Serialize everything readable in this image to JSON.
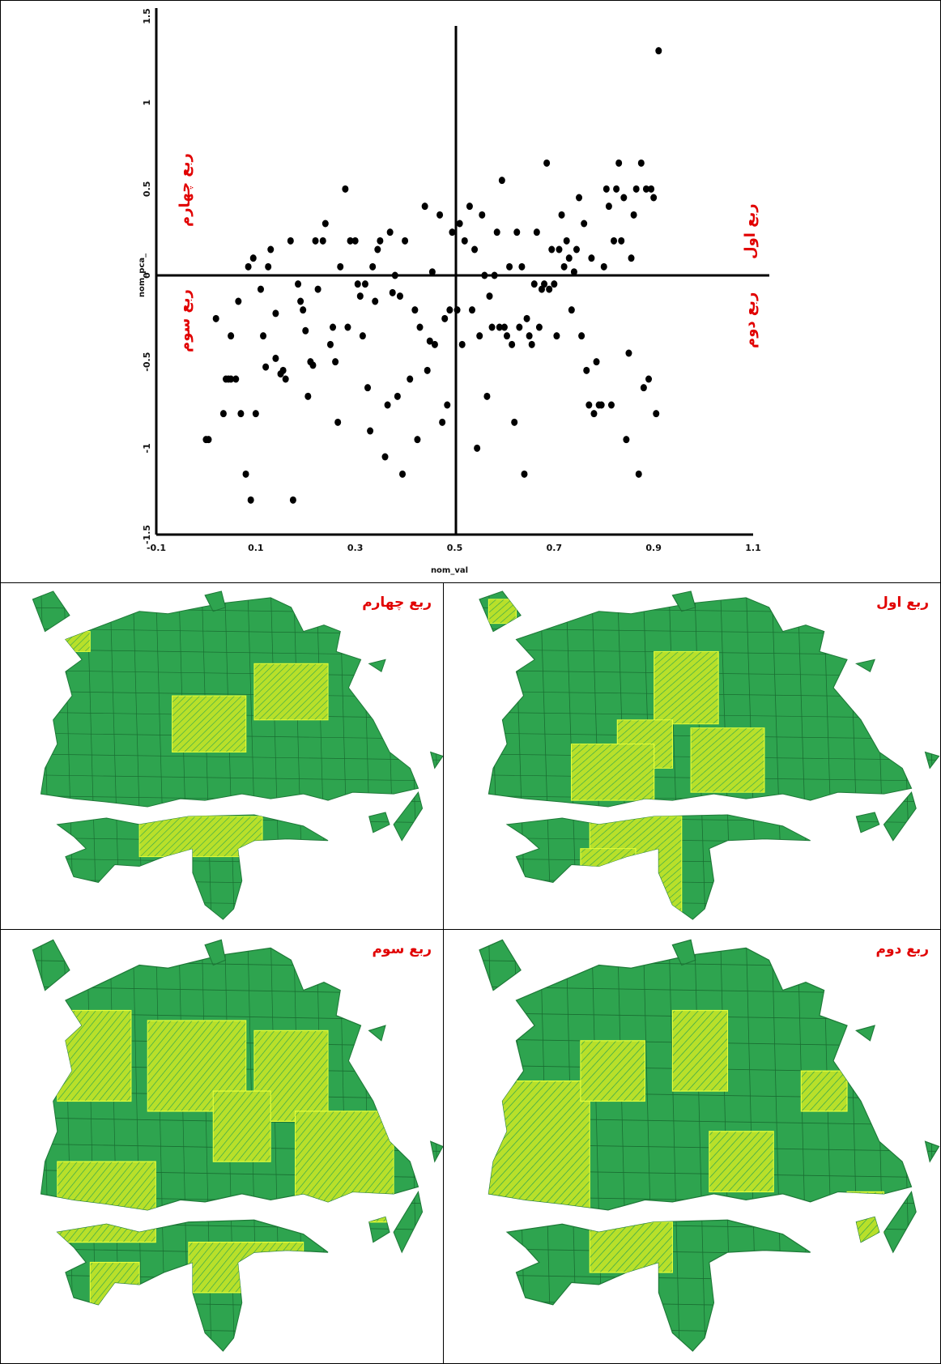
{
  "chart_data": {
    "type": "scatter",
    "title": "",
    "xlabel": "nom_val",
    "ylabel": "nom_pca_",
    "xlim": [
      -0.1,
      1.1
    ],
    "ylim": [
      -1.5,
      1.5
    ],
    "xticks": [
      "-0.1",
      "0.1",
      "0.3",
      "0.5",
      "0.7",
      "0.9",
      "1.1"
    ],
    "yticks": [
      1.5,
      1.0,
      0.5,
      0.0,
      -0.5,
      -1.0,
      -1.5
    ],
    "quadrant_divider": {
      "x": 0.5,
      "y": 0.0
    },
    "quadrants": {
      "q1": "ربع اول",
      "q2": "ربع دوم",
      "q3": "ربع سوم",
      "q4": "ربع چهارم"
    },
    "points": [
      [
        0.0,
        -0.95
      ],
      [
        0.005,
        -0.95
      ],
      [
        0.02,
        -0.25
      ],
      [
        0.035,
        -0.8
      ],
      [
        0.04,
        -0.6
      ],
      [
        0.045,
        -0.6
      ],
      [
        0.05,
        -0.6
      ],
      [
        0.05,
        -0.35
      ],
      [
        0.06,
        -0.6
      ],
      [
        0.065,
        -0.15
      ],
      [
        0.07,
        -0.8
      ],
      [
        0.08,
        -1.15
      ],
      [
        0.09,
        -1.3
      ],
      [
        0.085,
        0.05
      ],
      [
        0.095,
        0.1
      ],
      [
        0.1,
        -0.8
      ],
      [
        0.11,
        -0.08
      ],
      [
        0.115,
        -0.35
      ],
      [
        0.12,
        -0.53
      ],
      [
        0.125,
        0.05
      ],
      [
        0.13,
        0.15
      ],
      [
        0.14,
        -0.48
      ],
      [
        0.14,
        -0.22
      ],
      [
        0.15,
        -0.57
      ],
      [
        0.155,
        -0.55
      ],
      [
        0.16,
        -0.6
      ],
      [
        0.17,
        0.2
      ],
      [
        0.175,
        -1.3
      ],
      [
        0.185,
        -0.05
      ],
      [
        0.19,
        -0.15
      ],
      [
        0.195,
        -0.2
      ],
      [
        0.2,
        -0.32
      ],
      [
        0.205,
        -0.7
      ],
      [
        0.21,
        -0.5
      ],
      [
        0.215,
        -0.52
      ],
      [
        0.22,
        0.2
      ],
      [
        0.225,
        -0.08
      ],
      [
        0.235,
        0.2
      ],
      [
        0.24,
        0.3
      ],
      [
        0.25,
        -0.4
      ],
      [
        0.255,
        -0.3
      ],
      [
        0.26,
        -0.5
      ],
      [
        0.265,
        -0.85
      ],
      [
        0.27,
        0.05
      ],
      [
        0.28,
        0.5
      ],
      [
        0.285,
        -0.3
      ],
      [
        0.29,
        0.2
      ],
      [
        0.3,
        0.2
      ],
      [
        0.305,
        -0.05
      ],
      [
        0.31,
        -0.12
      ],
      [
        0.315,
        -0.35
      ],
      [
        0.32,
        -0.05
      ],
      [
        0.325,
        -0.65
      ],
      [
        0.33,
        -0.9
      ],
      [
        0.335,
        0.05
      ],
      [
        0.34,
        -0.15
      ],
      [
        0.345,
        0.15
      ],
      [
        0.35,
        0.2
      ],
      [
        0.36,
        -1.05
      ],
      [
        0.365,
        -0.75
      ],
      [
        0.37,
        0.25
      ],
      [
        0.375,
        -0.1
      ],
      [
        0.38,
        0.0
      ],
      [
        0.385,
        -0.7
      ],
      [
        0.39,
        -0.12
      ],
      [
        0.395,
        -1.15
      ],
      [
        0.4,
        0.2
      ],
      [
        0.41,
        -0.6
      ],
      [
        0.42,
        -0.2
      ],
      [
        0.425,
        -0.95
      ],
      [
        0.43,
        -0.3
      ],
      [
        0.44,
        0.4
      ],
      [
        0.445,
        -0.55
      ],
      [
        0.45,
        -0.38
      ],
      [
        0.455,
        0.02
      ],
      [
        0.46,
        -0.4
      ],
      [
        0.47,
        0.35
      ],
      [
        0.475,
        -0.85
      ],
      [
        0.48,
        -0.25
      ],
      [
        0.485,
        -0.75
      ],
      [
        0.49,
        -0.2
      ],
      [
        0.495,
        0.25
      ],
      [
        0.505,
        -0.2
      ],
      [
        0.51,
        0.3
      ],
      [
        0.515,
        -0.4
      ],
      [
        0.52,
        0.2
      ],
      [
        0.53,
        0.4
      ],
      [
        0.535,
        -0.2
      ],
      [
        0.54,
        0.15
      ],
      [
        0.545,
        -1.0
      ],
      [
        0.55,
        -0.35
      ],
      [
        0.555,
        0.35
      ],
      [
        0.56,
        0.0
      ],
      [
        0.565,
        -0.7
      ],
      [
        0.57,
        -0.12
      ],
      [
        0.575,
        -0.3
      ],
      [
        0.58,
        0.0
      ],
      [
        0.585,
        0.25
      ],
      [
        0.59,
        -0.3
      ],
      [
        0.595,
        0.55
      ],
      [
        0.6,
        -0.3
      ],
      [
        0.605,
        -0.35
      ],
      [
        0.61,
        0.05
      ],
      [
        0.615,
        -0.4
      ],
      [
        0.62,
        -0.85
      ],
      [
        0.625,
        0.25
      ],
      [
        0.63,
        -0.3
      ],
      [
        0.635,
        0.05
      ],
      [
        0.64,
        -1.15
      ],
      [
        0.645,
        -0.25
      ],
      [
        0.65,
        -0.35
      ],
      [
        0.655,
        -0.4
      ],
      [
        0.66,
        -0.05
      ],
      [
        0.665,
        0.25
      ],
      [
        0.67,
        -0.3
      ],
      [
        0.675,
        -0.08
      ],
      [
        0.68,
        -0.05
      ],
      [
        0.685,
        0.65
      ],
      [
        0.69,
        -0.08
      ],
      [
        0.695,
        0.15
      ],
      [
        0.7,
        -0.05
      ],
      [
        0.705,
        -0.35
      ],
      [
        0.71,
        0.15
      ],
      [
        0.715,
        0.35
      ],
      [
        0.72,
        0.05
      ],
      [
        0.725,
        0.2
      ],
      [
        0.73,
        0.1
      ],
      [
        0.735,
        -0.2
      ],
      [
        0.74,
        0.02
      ],
      [
        0.745,
        0.15
      ],
      [
        0.75,
        0.45
      ],
      [
        0.755,
        -0.35
      ],
      [
        0.76,
        0.3
      ],
      [
        0.765,
        -0.55
      ],
      [
        0.77,
        -0.75
      ],
      [
        0.775,
        0.1
      ],
      [
        0.78,
        -0.8
      ],
      [
        0.785,
        -0.5
      ],
      [
        0.79,
        -0.75
      ],
      [
        0.795,
        -0.75
      ],
      [
        0.8,
        0.05
      ],
      [
        0.805,
        0.5
      ],
      [
        0.81,
        0.4
      ],
      [
        0.815,
        -0.75
      ],
      [
        0.82,
        0.2
      ],
      [
        0.825,
        0.5
      ],
      [
        0.83,
        0.65
      ],
      [
        0.835,
        0.2
      ],
      [
        0.84,
        0.45
      ],
      [
        0.845,
        -0.95
      ],
      [
        0.85,
        -0.45
      ],
      [
        0.855,
        0.1
      ],
      [
        0.86,
        0.35
      ],
      [
        0.865,
        0.5
      ],
      [
        0.87,
        -1.15
      ],
      [
        0.875,
        0.65
      ],
      [
        0.88,
        -0.65
      ],
      [
        0.885,
        0.5
      ],
      [
        0.89,
        -0.6
      ],
      [
        0.895,
        0.5
      ],
      [
        0.9,
        0.45
      ],
      [
        0.905,
        -0.8
      ],
      [
        0.91,
        1.3
      ]
    ]
  },
  "maps": [
    {
      "title": "ربع اول",
      "id": "q1"
    },
    {
      "title": "ربع چهارم",
      "id": "q4"
    },
    {
      "title": "ربع دوم",
      "id": "q2"
    },
    {
      "title": "ربع سوم",
      "id": "q3"
    }
  ],
  "colors": {
    "map_fill": "#2ea44f",
    "highlight": "#b8e02a",
    "quad_label": "#e10000"
  }
}
